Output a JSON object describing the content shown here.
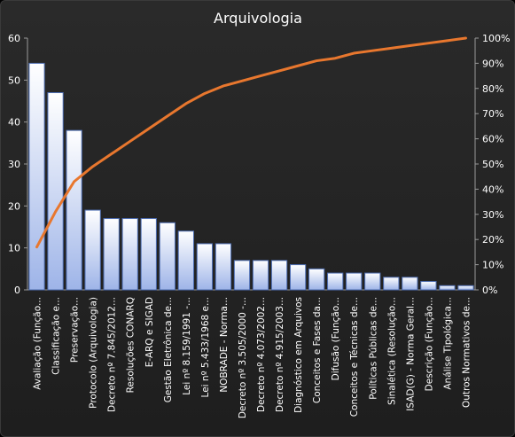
{
  "chart_data": {
    "type": "bar",
    "title": "Arquivologia",
    "categories": [
      "Avaliação (Função...",
      "Classificação e...",
      "Preservação...",
      "Protocolo (Arquivologia)",
      "Decreto nº 7.845/2012...",
      "Resoluções CONARQ",
      "E-ARQ e SIGAD",
      "Gestão Eletrônica de...",
      "Lei nº 8.159/1991 -...",
      "Lei nº 5.433/1968 e...",
      "NOBRADE - Norma...",
      "Decreto nº 3.505/2000 -...",
      "Decreto nº 4.073/2002...",
      "Decreto nº 4.915/2003...",
      "Diagnóstico em Arquivos",
      "Conceitos e Fases da...",
      "Difusão (Função...",
      "Conceitos e Técnicas de...",
      "Políticas Públicas de...",
      "Sinalética (Resolução...",
      "ISAD(G) - Norma Geral...",
      "Descrição (Função...",
      "Análise Tipológica...",
      "Outros Normativos de..."
    ],
    "series": [
      {
        "type": "bar",
        "values": [
          54,
          47,
          38,
          19,
          17,
          17,
          17,
          16,
          14,
          11,
          11,
          7,
          7,
          7,
          6,
          5,
          4,
          4,
          4,
          3,
          3,
          2,
          1,
          1
        ]
      },
      {
        "type": "line",
        "axis": "secondary",
        "values": [
          0.17,
          0.31,
          0.43,
          0.49,
          0.54,
          0.59,
          0.64,
          0.69,
          0.74,
          0.78,
          0.81,
          0.83,
          0.85,
          0.87,
          0.89,
          0.91,
          0.92,
          0.94,
          0.95,
          0.96,
          0.97,
          0.98,
          0.99,
          1.0
        ]
      }
    ],
    "y_ticks": [
      "0",
      "10",
      "20",
      "30",
      "40",
      "50",
      "60"
    ],
    "y2_ticks": [
      "0%",
      "10%",
      "20%",
      "30%",
      "40%",
      "50%",
      "60%",
      "70%",
      "80%",
      "90%",
      "100%"
    ],
    "ylim": [
      0,
      60
    ],
    "y2lim": [
      0,
      1
    ],
    "grid": false,
    "legend": "none",
    "colors": {
      "bar_top": "#ffffff",
      "bar_bottom": "#9eb4e8",
      "bar_stroke": "#4f6fb4",
      "line": "#e8772e",
      "text": "#ffffff",
      "axis": "#9a9a9a"
    }
  }
}
